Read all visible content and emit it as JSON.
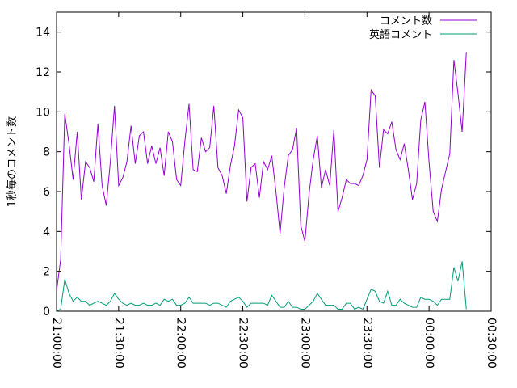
{
  "chart_data": {
    "type": "line",
    "title": "",
    "xlabel": "",
    "ylabel": "1秒毎のコメント数",
    "xlim": [
      "21:00:00",
      "00:30:00"
    ],
    "ylim": [
      0,
      15
    ],
    "x_ticks": [
      "21:00:00",
      "21:30:00",
      "22:00:00",
      "22:30:00",
      "23:00:00",
      "23:30:00",
      "00:00:00",
      "00:30:00"
    ],
    "y_ticks": [
      0,
      2,
      4,
      6,
      8,
      10,
      12,
      14
    ],
    "grid": false,
    "legend_position": "top-right",
    "x_interval_minutes": 2,
    "series": [
      {
        "name": "コメント数",
        "color": "#9400d3",
        "values": [
          1.0,
          2.6,
          9.9,
          8.4,
          6.6,
          9.0,
          5.6,
          7.5,
          7.2,
          6.5,
          9.4,
          6.3,
          5.3,
          7.5,
          10.3,
          6.3,
          6.7,
          7.5,
          9.3,
          7.4,
          8.8,
          9.0,
          7.4,
          8.3,
          7.4,
          8.2,
          6.8,
          9.0,
          8.5,
          6.6,
          6.3,
          8.5,
          10.4,
          7.1,
          7.0,
          8.7,
          8.0,
          8.2,
          10.3,
          7.2,
          6.8,
          5.9,
          7.3,
          8.3,
          10.1,
          9.7,
          5.5,
          7.2,
          7.4,
          5.7,
          7.5,
          7.1,
          7.8,
          6.0,
          3.9,
          6.2,
          7.8,
          8.1,
          9.2,
          4.3,
          3.5,
          5.9,
          7.6,
          8.8,
          6.2,
          7.1,
          6.3,
          9.1,
          5.0,
          5.7,
          6.6,
          6.4,
          6.4,
          6.3,
          6.8,
          7.6,
          11.1,
          10.8,
          7.2,
          9.1,
          8.9,
          9.5,
          8.1,
          7.6,
          8.4,
          7.1,
          5.6,
          6.4,
          9.6,
          10.5,
          7.5,
          5.0,
          4.5,
          6.1,
          7.0,
          7.9,
          12.6,
          10.9,
          9.0,
          13.0
        ]
      },
      {
        "name": "英語コメント",
        "color": "#009e73",
        "values": [
          0.0,
          0.1,
          1.6,
          0.9,
          0.5,
          0.7,
          0.5,
          0.5,
          0.3,
          0.4,
          0.5,
          0.4,
          0.3,
          0.5,
          0.9,
          0.6,
          0.4,
          0.3,
          0.4,
          0.3,
          0.3,
          0.4,
          0.3,
          0.3,
          0.4,
          0.3,
          0.6,
          0.5,
          0.6,
          0.3,
          0.3,
          0.4,
          0.7,
          0.4,
          0.4,
          0.4,
          0.4,
          0.3,
          0.4,
          0.4,
          0.3,
          0.2,
          0.5,
          0.6,
          0.7,
          0.5,
          0.2,
          0.4,
          0.4,
          0.4,
          0.4,
          0.3,
          0.8,
          0.5,
          0.2,
          0.2,
          0.5,
          0.2,
          0.2,
          0.1,
          0.1,
          0.3,
          0.5,
          0.9,
          0.6,
          0.3,
          0.3,
          0.3,
          0.1,
          0.1,
          0.4,
          0.4,
          0.1,
          0.2,
          0.1,
          0.6,
          1.1,
          1.0,
          0.5,
          0.4,
          1.0,
          0.3,
          0.3,
          0.6,
          0.4,
          0.3,
          0.2,
          0.2,
          0.7,
          0.6,
          0.6,
          0.5,
          0.3,
          0.6,
          0.6,
          0.6,
          2.2,
          1.5,
          2.5,
          0.1
        ]
      }
    ]
  }
}
